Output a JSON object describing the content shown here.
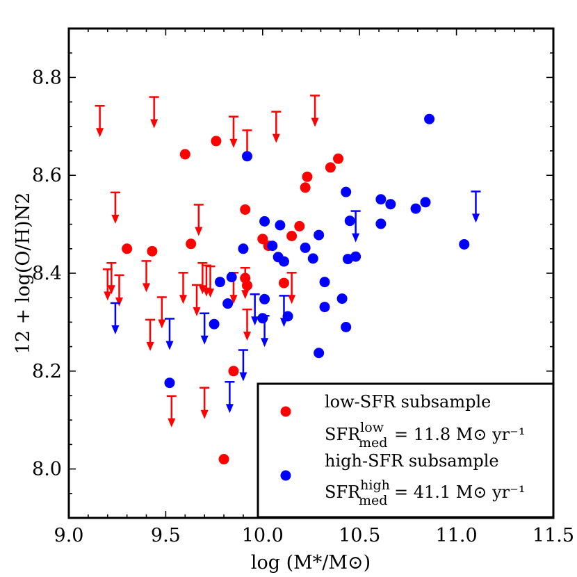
{
  "chart_data": {
    "type": "scatter",
    "title": "",
    "xlabel": "log (M*/M⊙)",
    "ylabel": "12 + log(O/H)N2",
    "xlim": [
      9.0,
      11.5
    ],
    "ylim": [
      7.9,
      8.9
    ],
    "x_ticks": [
      "9.0",
      "9.5",
      "10.0",
      "10.5",
      "11.0",
      "11.5"
    ],
    "y_ticks": [
      "8.0",
      "8.2",
      "8.4",
      "8.6",
      "8.8"
    ],
    "legend": {
      "location": "lower-right",
      "entries": [
        {
          "label": "low-SFR subsample",
          "sfr_prefix": "SFR",
          "sfr_sup": "low",
          "sfr_sub": "med",
          "sfr_value": "= 11.8 M⊙ yr⁻¹"
        },
        {
          "label": "high-SFR subsample",
          "sfr_prefix": "SFR",
          "sfr_sup": "high",
          "sfr_sub": "med",
          "sfr_value": "= 41.1 M⊙ yr⁻¹"
        }
      ]
    },
    "series": [
      {
        "name": "low-SFR subsample",
        "color": "#ff0000",
        "points": [
          {
            "x": 9.3,
            "y": 8.45
          },
          {
            "x": 9.43,
            "y": 8.445
          },
          {
            "x": 9.6,
            "y": 8.643
          },
          {
            "x": 9.63,
            "y": 8.46
          },
          {
            "x": 9.76,
            "y": 8.67
          },
          {
            "x": 9.8,
            "y": 8.02
          },
          {
            "x": 9.85,
            "y": 8.2
          },
          {
            "x": 9.91,
            "y": 8.53
          },
          {
            "x": 9.91,
            "y": 8.39
          },
          {
            "x": 9.92,
            "y": 8.375
          },
          {
            "x": 10.0,
            "y": 8.47
          },
          {
            "x": 10.03,
            "y": 8.456
          },
          {
            "x": 10.11,
            "y": 8.38
          },
          {
            "x": 10.15,
            "y": 8.476
          },
          {
            "x": 10.19,
            "y": 8.496
          },
          {
            "x": 10.22,
            "y": 8.575
          },
          {
            "x": 10.23,
            "y": 8.597
          },
          {
            "x": 10.35,
            "y": 8.616
          },
          {
            "x": 10.39,
            "y": 8.634
          }
        ],
        "upper_limits": [
          {
            "x": 9.16,
            "y": 8.742
          },
          {
            "x": 9.44,
            "y": 8.76
          },
          {
            "x": 9.85,
            "y": 8.72
          },
          {
            "x": 9.92,
            "y": 8.692
          },
          {
            "x": 10.07,
            "y": 8.73
          },
          {
            "x": 10.27,
            "y": 8.763
          },
          {
            "x": 9.24,
            "y": 8.565
          },
          {
            "x": 9.67,
            "y": 8.54
          },
          {
            "x": 9.2,
            "y": 8.408
          },
          {
            "x": 9.22,
            "y": 8.421
          },
          {
            "x": 9.4,
            "y": 8.425
          },
          {
            "x": 9.26,
            "y": 8.396
          },
          {
            "x": 9.59,
            "y": 8.401
          },
          {
            "x": 9.69,
            "y": 8.421
          },
          {
            "x": 9.71,
            "y": 8.416
          },
          {
            "x": 9.73,
            "y": 8.414
          },
          {
            "x": 9.66,
            "y": 8.376
          },
          {
            "x": 9.85,
            "y": 8.401
          },
          {
            "x": 9.91,
            "y": 8.411
          },
          {
            "x": 10.15,
            "y": 8.401
          },
          {
            "x": 9.48,
            "y": 8.351
          },
          {
            "x": 9.42,
            "y": 8.305
          },
          {
            "x": 9.92,
            "y": 8.326
          },
          {
            "x": 9.53,
            "y": 8.149
          },
          {
            "x": 9.7,
            "y": 8.166
          }
        ]
      },
      {
        "name": "high-SFR subsample",
        "color": "#0000ff",
        "points": [
          {
            "x": 9.52,
            "y": 8.176
          },
          {
            "x": 9.75,
            "y": 8.296
          },
          {
            "x": 9.78,
            "y": 8.382
          },
          {
            "x": 9.82,
            "y": 8.338
          },
          {
            "x": 9.84,
            "y": 8.392
          },
          {
            "x": 9.9,
            "y": 8.45
          },
          {
            "x": 9.92,
            "y": 8.639
          },
          {
            "x": 10.0,
            "y": 8.308
          },
          {
            "x": 10.01,
            "y": 8.347
          },
          {
            "x": 10.01,
            "y": 8.506
          },
          {
            "x": 10.05,
            "y": 8.456
          },
          {
            "x": 10.08,
            "y": 8.433
          },
          {
            "x": 10.09,
            "y": 8.498
          },
          {
            "x": 10.11,
            "y": 8.424
          },
          {
            "x": 10.13,
            "y": 8.312
          },
          {
            "x": 10.22,
            "y": 8.452
          },
          {
            "x": 10.26,
            "y": 8.43
          },
          {
            "x": 10.29,
            "y": 8.237
          },
          {
            "x": 10.29,
            "y": 8.478
          },
          {
            "x": 10.32,
            "y": 8.382
          },
          {
            "x": 10.32,
            "y": 8.331
          },
          {
            "x": 10.41,
            "y": 8.348
          },
          {
            "x": 10.43,
            "y": 8.29
          },
          {
            "x": 10.43,
            "y": 8.566
          },
          {
            "x": 10.44,
            "y": 8.429
          },
          {
            "x": 10.45,
            "y": 8.507
          },
          {
            "x": 10.48,
            "y": 8.434
          },
          {
            "x": 10.61,
            "y": 8.551
          },
          {
            "x": 10.61,
            "y": 8.501
          },
          {
            "x": 10.66,
            "y": 8.541
          },
          {
            "x": 10.79,
            "y": 8.532
          },
          {
            "x": 10.84,
            "y": 8.545
          },
          {
            "x": 10.86,
            "y": 8.715
          },
          {
            "x": 11.04,
            "y": 8.459
          }
        ],
        "upper_limits": [
          {
            "x": 9.24,
            "y": 8.339
          },
          {
            "x": 9.52,
            "y": 8.307
          },
          {
            "x": 9.7,
            "y": 8.318
          },
          {
            "x": 9.9,
            "y": 8.243
          },
          {
            "x": 9.96,
            "y": 8.357
          },
          {
            "x": 10.01,
            "y": 8.313
          },
          {
            "x": 10.11,
            "y": 8.354
          },
          {
            "x": 9.83,
            "y": 8.178
          },
          {
            "x": 10.48,
            "y": 8.527
          },
          {
            "x": 11.1,
            "y": 8.567
          }
        ]
      }
    ]
  }
}
